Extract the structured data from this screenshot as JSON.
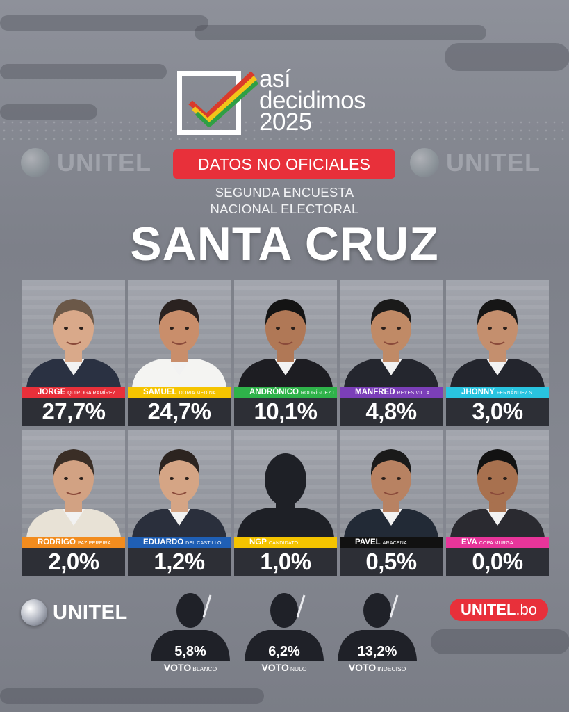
{
  "logo": {
    "line1": "así",
    "line2": "decidimos",
    "line3": "2025"
  },
  "watermark": "UNITEL",
  "badge": "DATOS NO OFICIALES",
  "subtitle": {
    "line1": "SEGUNDA ENCUESTA",
    "line2": "NACIONAL ELECTORAL"
  },
  "region": "SANTA CRUZ",
  "candidates": [
    {
      "first": "JORGE",
      "last": "QUIROGA RAMÍREZ",
      "pct": "27,7%",
      "color": "#e8303a",
      "text_color": "#ffffff",
      "photo": "person"
    },
    {
      "first": "SAMUEL",
      "last": "DORIA MEDINA",
      "pct": "24,7%",
      "color": "#f5c400",
      "text_color": "#ffffff",
      "photo": "person"
    },
    {
      "first": "ANDRÓNICO",
      "last": "RODRÍGUEZ L.",
      "pct": "10,1%",
      "color": "#2fb34a",
      "text_color": "#ffffff",
      "photo": "person"
    },
    {
      "first": "MANFRED",
      "last": "REYES VILLA",
      "pct": "4,8%",
      "color": "#7b3fb8",
      "text_color": "#ffffff",
      "photo": "person"
    },
    {
      "first": "JHONNY",
      "last": "FERNÁNDEZ S.",
      "pct": "3,0%",
      "color": "#29c4e0",
      "text_color": "#ffffff",
      "photo": "person"
    },
    {
      "first": "RODRIGO",
      "last": "PAZ PEREIRA",
      "pct": "2,0%",
      "color": "#f28c1e",
      "text_color": "#ffffff",
      "photo": "person"
    },
    {
      "first": "EDUARDO",
      "last": "DEL CASTILLO",
      "pct": "1,2%",
      "color": "#1f5fb5",
      "text_color": "#ffffff",
      "photo": "person"
    },
    {
      "first": "NGP",
      "last": "CANDIDATO",
      "pct": "1,0%",
      "color": "#f5c400",
      "text_color": "#ffffff",
      "photo": "silhouette"
    },
    {
      "first": "PAVEL",
      "last": "ARACENA",
      "pct": "0,5%",
      "color": "#111111",
      "text_color": "#ffffff",
      "photo": "person"
    },
    {
      "first": "EVA",
      "last": "COPA MURGA",
      "pct": "0,0%",
      "color": "#e8359a",
      "text_color": "#ffffff",
      "photo": "person"
    }
  ],
  "brand_left": "UNITEL",
  "brand_right": {
    "name": "UNITEL",
    "dot": ".",
    "tld": "bo"
  },
  "votes": [
    {
      "pct": "5,8%",
      "label": "VOTO",
      "sub": "BLANCO"
    },
    {
      "pct": "6,2%",
      "label": "VOTO",
      "sub": "NULO"
    },
    {
      "pct": "13,2%",
      "label": "VOTO",
      "sub": "INDECISO"
    }
  ]
}
